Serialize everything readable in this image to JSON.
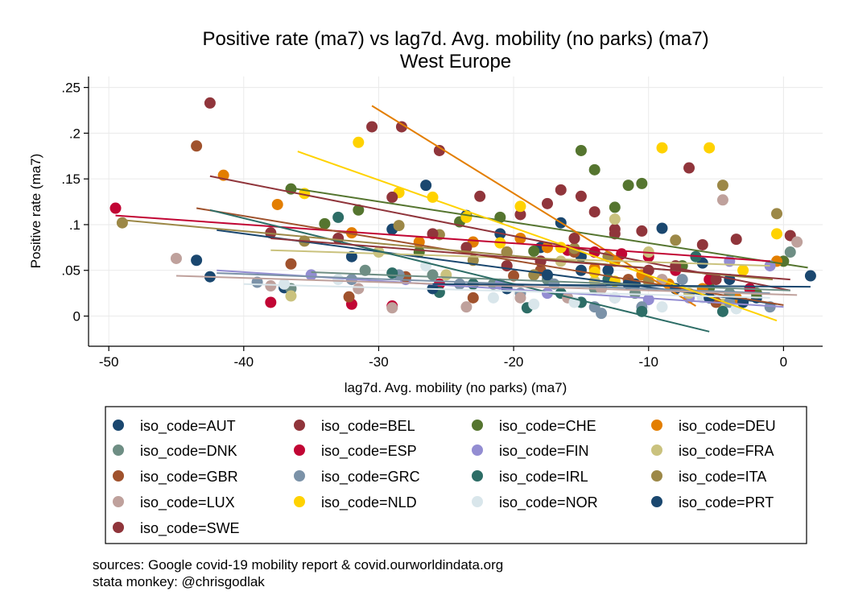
{
  "chart_data": {
    "type": "scatter",
    "title": "Positive rate (ma7) vs lag7d. Avg. mobility (no parks) (ma7)",
    "subtitle": "West Europe",
    "xlabel": "lag7d. Avg. mobility (no parks) (ma7)",
    "ylabel": "Positive rate (ma7)",
    "xlim": [
      -51.5,
      2.9
    ],
    "ylim": [
      -0.033,
      0.262
    ],
    "xticks": [
      -50,
      -40,
      -30,
      -20,
      -10,
      0
    ],
    "xtick_labels": [
      "-50",
      "-40",
      "-30",
      "-20",
      "-10",
      "0"
    ],
    "yticks": [
      0,
      0.05,
      0.1,
      0.15,
      0.2,
      0.25
    ],
    "ytick_labels": [
      "0",
      ".05",
      ".1",
      ".15",
      ".2",
      ".25"
    ],
    "grid": true,
    "legend_position": "bottom",
    "notes": [
      "sources: Google covid-19 mobility report & covid.ourworldindata.org",
      "stata monkey: @chrisgodlak"
    ],
    "series": [
      {
        "name": "iso_code=AUT",
        "color": "#1a476f",
        "points": [
          [
            -43.5,
            0.061
          ],
          [
            -42.5,
            0.043
          ],
          [
            -37,
            0.031
          ],
          [
            -32,
            0.065
          ],
          [
            -29,
            0.095
          ],
          [
            -26.5,
            0.143
          ],
          [
            -23.5,
            0.11
          ],
          [
            -21,
            0.09
          ],
          [
            -18,
            0.075
          ],
          [
            -16.5,
            0.102
          ],
          [
            -15,
            0.065
          ],
          [
            -13,
            0.05
          ],
          [
            -11,
            0.035
          ],
          [
            -9,
            0.096
          ],
          [
            -6,
            0.058
          ],
          [
            -4,
            0.04
          ],
          [
            -2,
            0.02
          ]
        ],
        "fit": [
          [
            -42,
            0.094
          ],
          [
            -0.5,
            0.013
          ]
        ]
      },
      {
        "name": "iso_code=BEL",
        "color": "#90353b",
        "points": [
          [
            -42.5,
            0.233
          ],
          [
            -30.5,
            0.207
          ],
          [
            -28.3,
            0.207
          ],
          [
            -25.5,
            0.181
          ],
          [
            -22.5,
            0.131
          ],
          [
            -19.5,
            0.111
          ],
          [
            -17.5,
            0.123
          ],
          [
            -16.5,
            0.138
          ],
          [
            -15,
            0.131
          ],
          [
            -14,
            0.114
          ],
          [
            -12.5,
            0.095
          ],
          [
            -10.5,
            0.093
          ],
          [
            -7,
            0.162
          ],
          [
            -6,
            0.078
          ],
          [
            -3.5,
            0.084
          ],
          [
            0.5,
            0.088
          ]
        ],
        "fit": [
          [
            -42.5,
            0.153
          ],
          [
            0.5,
            0.028
          ]
        ]
      },
      {
        "name": "iso_code=CHE",
        "color": "#55752f",
        "points": [
          [
            -36.5,
            0.139
          ],
          [
            -34,
            0.101
          ],
          [
            -31.5,
            0.116
          ],
          [
            -27,
            0.07
          ],
          [
            -24,
            0.103
          ],
          [
            -21,
            0.108
          ],
          [
            -18.5,
            0.071
          ],
          [
            -15,
            0.181
          ],
          [
            -14,
            0.16
          ],
          [
            -12.5,
            0.119
          ],
          [
            -11.5,
            0.143
          ],
          [
            -10.5,
            0.145
          ],
          [
            -7.5,
            0.055
          ],
          [
            -5.5,
            0.031
          ],
          [
            -2,
            0.025
          ],
          [
            0,
            0.06
          ]
        ],
        "fit": [
          [
            -36.5,
            0.14
          ],
          [
            1.8,
            0.053
          ]
        ]
      },
      {
        "name": "iso_code=DEU",
        "color": "#e37e00",
        "points": [
          [
            -41.5,
            0.154
          ],
          [
            -37.5,
            0.122
          ],
          [
            -32,
            0.091
          ],
          [
            -27,
            0.081
          ],
          [
            -23,
            0.081
          ],
          [
            -19.5,
            0.085
          ],
          [
            -17.5,
            0.075
          ],
          [
            -15.5,
            0.085
          ],
          [
            -14,
            0.052
          ],
          [
            -12.5,
            0.06
          ],
          [
            -10.5,
            0.045
          ],
          [
            -8.5,
            0.035
          ],
          [
            -6,
            0.03
          ],
          [
            -3.5,
            0.02
          ],
          [
            -0.5,
            0.06
          ]
        ],
        "fit": [
          [
            -30.5,
            0.23
          ],
          [
            -6.5,
            0.011
          ]
        ]
      },
      {
        "name": "iso_code=DNK",
        "color": "#6e8e84",
        "points": [
          [
            -36.5,
            0.03
          ],
          [
            -31,
            0.05
          ],
          [
            -26,
            0.045
          ],
          [
            -21.5,
            0.035
          ],
          [
            -17.5,
            0.04
          ],
          [
            -14,
            0.03
          ],
          [
            -11,
            0.025
          ],
          [
            -8,
            0.03
          ],
          [
            -4,
            0.025
          ],
          [
            0.5,
            0.07
          ]
        ],
        "fit": [
          [
            -35,
            0.048
          ],
          [
            0.5,
            0.028
          ]
        ]
      },
      {
        "name": "iso_code=ESP",
        "color": "#c10534",
        "points": [
          [
            -49.5,
            0.118
          ],
          [
            -38,
            0.015
          ],
          [
            -32,
            0.013
          ],
          [
            -29,
            0.011
          ],
          [
            -25.5,
            0.035
          ],
          [
            -20.5,
            0.07
          ],
          [
            -18,
            0.06
          ],
          [
            -16,
            0.072
          ],
          [
            -14,
            0.07
          ],
          [
            -12,
            0.068
          ],
          [
            -10,
            0.065
          ],
          [
            -8,
            0.05
          ],
          [
            -5.5,
            0.04
          ],
          [
            -2.5,
            0.03
          ]
        ],
        "fit": [
          [
            -49.5,
            0.11
          ],
          [
            -1,
            0.06
          ]
        ]
      },
      {
        "name": "iso_code=FIN",
        "color": "#938dd2",
        "points": [
          [
            -35,
            0.045
          ],
          [
            -28,
            0.04
          ],
          [
            -21,
            0.035
          ],
          [
            -17.5,
            0.025
          ],
          [
            -15,
            0.015
          ],
          [
            -12.5,
            0.02
          ],
          [
            -10,
            0.018
          ],
          [
            -7,
            0.02
          ],
          [
            -4,
            0.06
          ],
          [
            -1,
            0.055
          ]
        ],
        "fit": [
          [
            -42,
            0.05
          ],
          [
            0,
            0.01
          ]
        ]
      },
      {
        "name": "iso_code=FRA",
        "color": "#cac27e",
        "points": [
          [
            -36.5,
            0.022
          ],
          [
            -30,
            0.07
          ],
          [
            -25,
            0.045
          ],
          [
            -20.5,
            0.055
          ],
          [
            -16.5,
            0.06
          ],
          [
            -14,
            0.038
          ],
          [
            -12.5,
            0.106
          ],
          [
            -10,
            0.07
          ],
          [
            -7,
            0.025
          ],
          [
            -4.5,
            0.013
          ]
        ],
        "fit": [
          [
            -38,
            0.072
          ],
          [
            -1,
            0.055
          ]
        ]
      },
      {
        "name": "iso_code=GBR",
        "color": "#a0522d",
        "points": [
          [
            -43.5,
            0.186
          ],
          [
            -36.5,
            0.057
          ],
          [
            -32.2,
            0.021
          ],
          [
            -28,
            0.043
          ],
          [
            -23,
            0.02
          ],
          [
            -20,
            0.044
          ],
          [
            -18,
            0.05
          ],
          [
            -15.5,
            0.07
          ],
          [
            -11.5,
            0.04
          ],
          [
            -8,
            0.03
          ],
          [
            -5,
            0.015
          ]
        ],
        "fit": [
          [
            -43.5,
            0.118
          ],
          [
            0,
            0.012
          ]
        ]
      },
      {
        "name": "iso_code=GRC",
        "color": "#7b92a8",
        "points": [
          [
            -39,
            0.037
          ],
          [
            -32,
            0.04
          ],
          [
            -28.5,
            0.045
          ],
          [
            -24,
            0.035
          ],
          [
            -19.5,
            0.025
          ],
          [
            -17,
            0.035
          ],
          [
            -14,
            0.01
          ],
          [
            -13.5,
            0.003
          ],
          [
            -10.5,
            0.01
          ],
          [
            -7.5,
            0.04
          ],
          [
            -4,
            0.015
          ],
          [
            -1,
            0.01
          ]
        ],
        "fit": [
          [
            -42,
            0.047
          ],
          [
            -1,
            0.025
          ]
        ]
      },
      {
        "name": "iso_code=IRL",
        "color": "#2d6d66",
        "points": [
          [
            -33,
            0.108
          ],
          [
            -29,
            0.047
          ],
          [
            -25.5,
            0.026
          ],
          [
            -23,
            0.035
          ],
          [
            -19,
            0.009
          ],
          [
            -16.5,
            0.025
          ],
          [
            -15,
            0.015
          ],
          [
            -13,
            0.04
          ],
          [
            -10.5,
            0.005
          ],
          [
            -6.5,
            0.065
          ],
          [
            -4.5,
            0.005
          ]
        ],
        "fit": [
          [
            -42.5,
            0.116
          ],
          [
            -5.5,
            -0.017
          ]
        ]
      },
      {
        "name": "iso_code=ITA",
        "color": "#9c8847",
        "points": [
          [
            -49,
            0.102
          ],
          [
            -35.5,
            0.082
          ],
          [
            -28.5,
            0.099
          ],
          [
            -25.5,
            0.089
          ],
          [
            -23,
            0.061
          ],
          [
            -20.5,
            0.07
          ],
          [
            -18.5,
            0.045
          ],
          [
            -15.5,
            0.074
          ],
          [
            -13,
            0.065
          ],
          [
            -10,
            0.038
          ],
          [
            -8,
            0.083
          ],
          [
            -4.5,
            0.143
          ],
          [
            -0.5,
            0.112
          ]
        ],
        "fit": [
          [
            -49,
            0.105
          ],
          [
            -0.8,
            0.04
          ]
        ]
      },
      {
        "name": "iso_code=LUX",
        "color": "#bfa19c",
        "points": [
          [
            -45,
            0.063
          ],
          [
            -38,
            0.033
          ],
          [
            -31.5,
            0.03
          ],
          [
            -29,
            0.009
          ],
          [
            -23.5,
            0.01
          ],
          [
            -19.5,
            0.02
          ],
          [
            -16,
            0.02
          ],
          [
            -13.5,
            0.03
          ],
          [
            -9,
            0.04
          ],
          [
            -4.5,
            0.127
          ],
          [
            1,
            0.081
          ]
        ],
        "fit": [
          [
            -45,
            0.044
          ],
          [
            1,
            0.023
          ]
        ]
      },
      {
        "name": "iso_code=NLD",
        "color": "#ffd200",
        "points": [
          [
            -35.5,
            0.134
          ],
          [
            -31.5,
            0.19
          ],
          [
            -28.5,
            0.135
          ],
          [
            -26,
            0.13
          ],
          [
            -23.5,
            0.108
          ],
          [
            -21,
            0.08
          ],
          [
            -19.5,
            0.12
          ],
          [
            -16.5,
            0.075
          ],
          [
            -14,
            0.048
          ],
          [
            -12.5,
            0.038
          ],
          [
            -9,
            0.184
          ],
          [
            -5.5,
            0.184
          ],
          [
            -3,
            0.05
          ],
          [
            -0.5,
            0.09
          ]
        ],
        "fit": [
          [
            -36,
            0.18
          ],
          [
            -0.5,
            -0.005
          ]
        ]
      },
      {
        "name": "iso_code=NOR",
        "color": "#d9e6eb",
        "points": [
          [
            -37,
            0.035
          ],
          [
            -33,
            0.04
          ],
          [
            -26.5,
            0.055
          ],
          [
            -21.5,
            0.02
          ],
          [
            -18.5,
            0.013
          ],
          [
            -15.5,
            0.015
          ],
          [
            -12.5,
            0.02
          ],
          [
            -9,
            0.01
          ],
          [
            -6,
            0.02
          ],
          [
            -3.5,
            0.008
          ]
        ],
        "fit": [
          [
            -40,
            0.035
          ],
          [
            -1,
            0.02
          ]
        ]
      },
      {
        "name": "iso_code=PRT",
        "color": "#1a476f",
        "points": [
          [
            -26,
            0.03
          ],
          [
            -20.5,
            0.03
          ],
          [
            -17.5,
            0.045
          ],
          [
            -15,
            0.05
          ],
          [
            -11.5,
            0.035
          ],
          [
            -8,
            0.03
          ],
          [
            -5.5,
            0.02
          ],
          [
            -3,
            0.015
          ],
          [
            2,
            0.044
          ]
        ],
        "fit": [
          [
            -26,
            0.035
          ],
          [
            2,
            0.032
          ]
        ]
      },
      {
        "name": "iso_code=SWE",
        "color": "#90353b",
        "points": [
          [
            -38,
            0.091
          ],
          [
            -33,
            0.085
          ],
          [
            -29,
            0.13
          ],
          [
            -26,
            0.09
          ],
          [
            -23.5,
            0.075
          ],
          [
            -20.5,
            0.055
          ],
          [
            -18,
            0.06
          ],
          [
            -15.5,
            0.085
          ],
          [
            -12.5,
            0.09
          ],
          [
            -10,
            0.05
          ],
          [
            -8,
            0.055
          ],
          [
            -5,
            0.04
          ]
        ],
        "fit": [
          [
            -38,
            0.085
          ],
          [
            0.5,
            0.04
          ]
        ]
      }
    ]
  }
}
